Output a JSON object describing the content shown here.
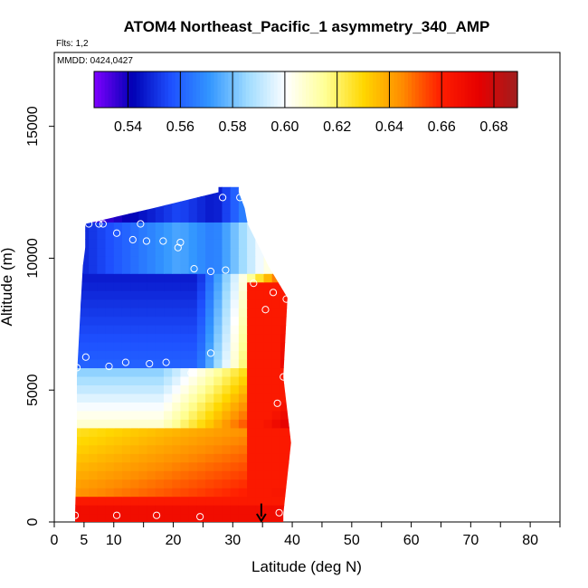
{
  "chart_data": {
    "type": "heatmap",
    "title": "ATOM4 Northeast_Pacific_1 asymmetry_340_AMP",
    "subtitle_flights": "Flts: 1,2",
    "subtitle_dates": "MMDD: 0424,0427",
    "xlabel": "Latitude (deg N)",
    "ylabel": "Altitude (m)",
    "xlim": [
      0,
      85
    ],
    "ylim": [
      0,
      17800
    ],
    "x_ticks": [
      0,
      5,
      10,
      20,
      30,
      40,
      50,
      60,
      70,
      80
    ],
    "x_tick_labels": [
      "0",
      "5",
      "10",
      "20",
      "30",
      "40",
      "50",
      "60",
      "70",
      "80"
    ],
    "x_minor_ticks": [
      15,
      25,
      35,
      45,
      55,
      65,
      75,
      85
    ],
    "y_ticks": [
      0,
      5000,
      10000,
      15000
    ],
    "y_tick_labels": [
      "0",
      "5000",
      "10000",
      "15000"
    ],
    "colorbar": {
      "min": 0.527,
      "max": 0.689,
      "ticks": [
        0.54,
        0.56,
        0.58,
        0.6,
        0.62,
        0.64,
        0.66,
        0.68
      ],
      "tick_labels": [
        "0.54",
        "0.56",
        "0.58",
        "0.60",
        "0.62",
        "0.64",
        "0.66",
        "0.68"
      ],
      "colors": [
        "#7f00ff",
        "#0000b4",
        "#1e50ff",
        "#3296ff",
        "#a0dcff",
        "#ffffff",
        "#ffff96",
        "#ffd700",
        "#ff8c00",
        "#ff1e00",
        "#e60000",
        "#a01e1e"
      ]
    },
    "field_extent": {
      "rows": [
        {
          "alt": 300,
          "lat_min": 3.5,
          "lat_max": 38.5
        },
        {
          "alt": 3000,
          "lat_min": 3.8,
          "lat_max": 39.8
        },
        {
          "alt": 5500,
          "lat_min": 3.8,
          "lat_max": 38.5
        },
        {
          "alt": 8500,
          "lat_min": 4.5,
          "lat_max": 39.2
        },
        {
          "alt": 9700,
          "lat_min": 4.8,
          "lat_max": 36.0
        },
        {
          "alt": 10400,
          "lat_min": 5.2,
          "lat_max": 34.5
        },
        {
          "alt": 11300,
          "lat_min": 5.2,
          "lat_max": 32.5
        },
        {
          "alt": 11900,
          "lat_min": 16.7,
          "lat_max": 32.0
        },
        {
          "alt": 12500,
          "lat_min": 27.6,
          "lat_max": 31.0
        }
      ]
    },
    "sample_points": [
      {
        "lat": 3.5,
        "alt": 250
      },
      {
        "lat": 10.5,
        "alt": 250
      },
      {
        "lat": 17.2,
        "alt": 250
      },
      {
        "lat": 24.5,
        "alt": 200
      },
      {
        "lat": 37.8,
        "alt": 350
      },
      {
        "lat": 3.8,
        "alt": 5850
      },
      {
        "lat": 5.3,
        "alt": 6250
      },
      {
        "lat": 9.2,
        "alt": 5900
      },
      {
        "lat": 12.0,
        "alt": 6050
      },
      {
        "lat": 16.0,
        "alt": 6000
      },
      {
        "lat": 18.8,
        "alt": 6050
      },
      {
        "lat": 23.0,
        "alt": 5650
      },
      {
        "lat": 26.3,
        "alt": 6400
      },
      {
        "lat": 37.5,
        "alt": 4500
      },
      {
        "lat": 39.8,
        "alt": 4350
      },
      {
        "lat": 38.5,
        "alt": 5500
      },
      {
        "lat": 35.5,
        "alt": 8050
      },
      {
        "lat": 36.8,
        "alt": 8700
      },
      {
        "lat": 39.0,
        "alt": 8450
      },
      {
        "lat": 33.5,
        "alt": 9050
      },
      {
        "lat": 5.8,
        "alt": 11300
      },
      {
        "lat": 7.5,
        "alt": 11300
      },
      {
        "lat": 8.2,
        "alt": 11300
      },
      {
        "lat": 14.5,
        "alt": 11300
      },
      {
        "lat": 10.5,
        "alt": 10950
      },
      {
        "lat": 13.2,
        "alt": 10700
      },
      {
        "lat": 15.5,
        "alt": 10650
      },
      {
        "lat": 18.3,
        "alt": 10650
      },
      {
        "lat": 21.2,
        "alt": 10600
      },
      {
        "lat": 20.8,
        "alt": 10400
      },
      {
        "lat": 23.5,
        "alt": 9600
      },
      {
        "lat": 26.3,
        "alt": 9500
      },
      {
        "lat": 28.8,
        "alt": 9550
      },
      {
        "lat": 28.3,
        "alt": 12300
      },
      {
        "lat": 31.2,
        "alt": 12300
      }
    ],
    "arrow_marker": {
      "lat": 34.8,
      "alt_from": 700,
      "alt_to": 0
    }
  }
}
